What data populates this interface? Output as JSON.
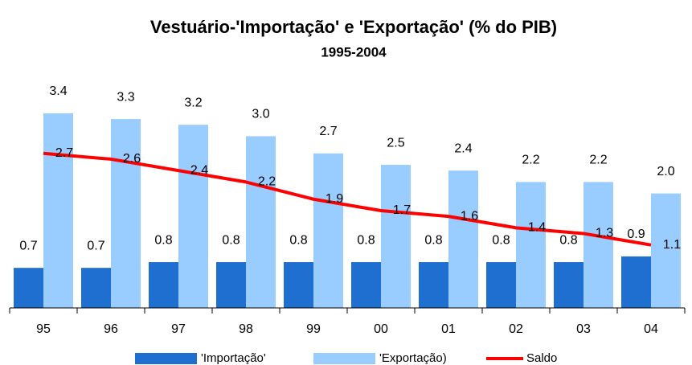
{
  "chart_data": {
    "type": "bar_line",
    "title": "Vestuário-'Importação' e 'Exportação' (% do PIB)",
    "subtitle": "1995-2004",
    "categories": [
      "95",
      "96",
      "97",
      "98",
      "99",
      "00",
      "01",
      "02",
      "03",
      "04"
    ],
    "series": [
      {
        "name": "'Importação'",
        "type": "bar",
        "color": "#1f6fd1",
        "values": [
          0.7,
          0.7,
          0.8,
          0.8,
          0.8,
          0.8,
          0.8,
          0.8,
          0.8,
          0.9
        ]
      },
      {
        "name": "'Exportação)",
        "type": "bar",
        "color": "#99ccff",
        "values": [
          3.4,
          3.3,
          3.2,
          3.0,
          2.7,
          2.5,
          2.4,
          2.2,
          2.2,
          2.0
        ],
        "value_labels": [
          "3.4",
          "3.3",
          "3.2",
          "3.0",
          "2.7",
          "2.5",
          "2.4",
          "2.2",
          "2.2",
          "2.0"
        ]
      },
      {
        "name": "Saldo",
        "type": "line",
        "color": "#ff0000",
        "values": [
          2.7,
          2.6,
          2.4,
          2.2,
          1.9,
          1.7,
          1.6,
          1.4,
          1.3,
          1.1
        ]
      }
    ],
    "ylim": [
      0,
      3.8
    ]
  }
}
